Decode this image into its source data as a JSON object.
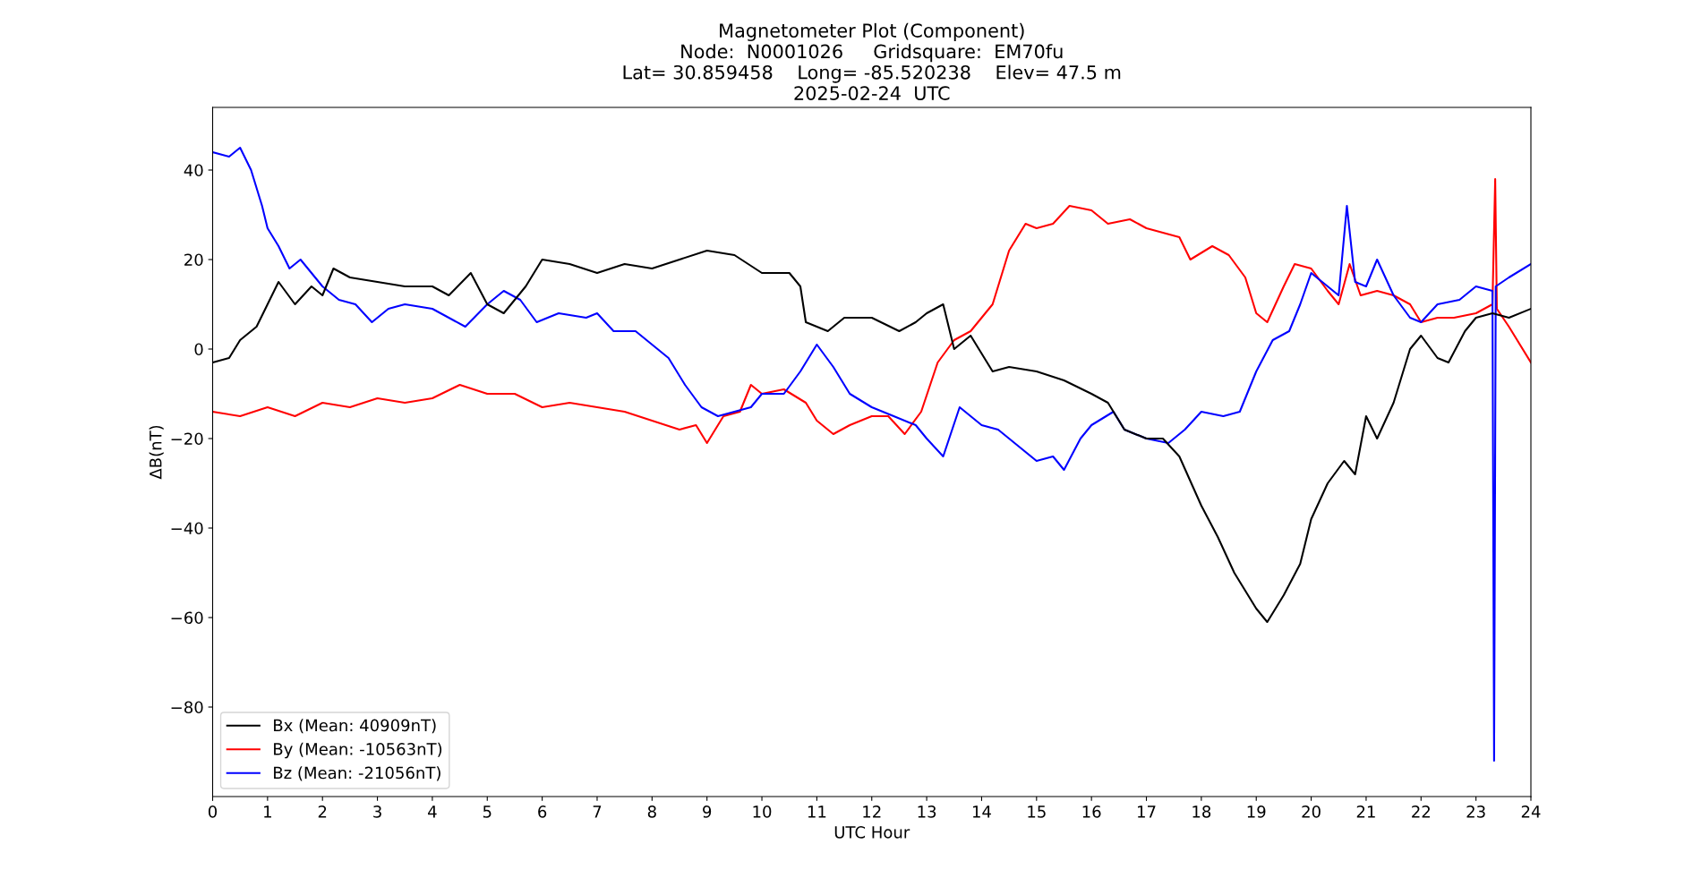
{
  "chart_data": {
    "type": "line",
    "title": "Magnetometer Plot (Component)\nNode:  N0001026     Gridsquare:  EM70fu\nLat= 30.859458    Long= -85.520238    Elev= 47.5 m\n2025-02-24  UTC",
    "xlabel": "UTC Hour",
    "ylabel": "ΔB(nT)",
    "xlim": [
      0,
      24
    ],
    "xticks": [
      0,
      1,
      2,
      3,
      4,
      5,
      6,
      7,
      8,
      9,
      10,
      11,
      12,
      13,
      14,
      15,
      16,
      17,
      18,
      19,
      20,
      21,
      22,
      23,
      24
    ],
    "ylim": [
      -100,
      54
    ],
    "yticks": [
      -80,
      -60,
      -40,
      -20,
      0,
      20,
      40
    ],
    "grid": false,
    "legend": "bottom left",
    "series": [
      {
        "name": "Bx (Mean: 40909nT)",
        "color": "#000000",
        "x": [
          0,
          0.3,
          0.5,
          0.8,
          1.0,
          1.2,
          1.5,
          1.8,
          2.0,
          2.2,
          2.5,
          3.0,
          3.5,
          4.0,
          4.3,
          4.7,
          5.0,
          5.3,
          5.7,
          6.0,
          6.5,
          7.0,
          7.5,
          8.0,
          8.5,
          9.0,
          9.5,
          10.0,
          10.5,
          10.7,
          10.8,
          11.2,
          11.5,
          12.0,
          12.5,
          12.8,
          13.0,
          13.3,
          13.5,
          13.8,
          14.2,
          14.5,
          15.0,
          15.5,
          16.0,
          16.3,
          16.6,
          17.0,
          17.3,
          17.6,
          18.0,
          18.3,
          18.6,
          19.0,
          19.2,
          19.5,
          19.8,
          20.0,
          20.3,
          20.6,
          20.8,
          21.0,
          21.2,
          21.5,
          21.8,
          22.0,
          22.3,
          22.5,
          22.8,
          23.0,
          23.3,
          23.6,
          24
        ],
        "values": [
          -3,
          -2,
          2,
          5,
          10,
          15,
          10,
          14,
          12,
          18,
          16,
          15,
          14,
          14,
          12,
          17,
          10,
          8,
          14,
          20,
          19,
          17,
          19,
          18,
          20,
          22,
          21,
          17,
          17,
          14,
          6,
          4,
          7,
          7,
          4,
          6,
          8,
          10,
          0,
          3,
          -5,
          -4,
          -5,
          -7,
          -10,
          -12,
          -18,
          -20,
          -20,
          -24,
          -35,
          -42,
          -50,
          -58,
          -61,
          -55,
          -48,
          -38,
          -30,
          -25,
          -28,
          -15,
          -20,
          -12,
          0,
          3,
          -2,
          -3,
          4,
          7,
          8,
          7,
          9
        ]
      },
      {
        "name": "By (Mean: -10563nT)",
        "color": "#ff0000",
        "x": [
          0,
          0.5,
          1.0,
          1.5,
          2.0,
          2.5,
          3.0,
          3.5,
          4.0,
          4.5,
          5.0,
          5.5,
          6.0,
          6.5,
          7.0,
          7.5,
          8.0,
          8.5,
          8.8,
          9.0,
          9.3,
          9.6,
          9.8,
          10.0,
          10.4,
          10.8,
          11.0,
          11.3,
          11.6,
          12.0,
          12.3,
          12.6,
          12.9,
          13.2,
          13.5,
          13.8,
          14.2,
          14.5,
          14.8,
          15.0,
          15.3,
          15.6,
          16.0,
          16.3,
          16.7,
          17.0,
          17.3,
          17.6,
          17.8,
          18.2,
          18.5,
          18.8,
          19.0,
          19.2,
          19.5,
          19.7,
          20.0,
          20.3,
          20.5,
          20.7,
          20.9,
          21.2,
          21.5,
          21.8,
          22.0,
          22.3,
          22.6,
          23.0,
          23.3,
          23.35,
          23.38,
          23.6,
          24
        ],
        "values": [
          -14,
          -15,
          -13,
          -15,
          -12,
          -13,
          -11,
          -12,
          -11,
          -8,
          -10,
          -10,
          -13,
          -12,
          -13,
          -14,
          -16,
          -18,
          -17,
          -21,
          -15,
          -14,
          -8,
          -10,
          -9,
          -12,
          -16,
          -19,
          -17,
          -15,
          -15,
          -19,
          -14,
          -3,
          2,
          4,
          10,
          22,
          28,
          27,
          28,
          32,
          31,
          28,
          29,
          27,
          26,
          25,
          20,
          23,
          21,
          16,
          8,
          6,
          14,
          19,
          18,
          13,
          10,
          19,
          12,
          13,
          12,
          10,
          6,
          7,
          7,
          8,
          10,
          38,
          9,
          5,
          -3
        ]
      },
      {
        "name": "Bz (Mean: -21056nT)",
        "color": "#0000ff",
        "x": [
          0,
          0.3,
          0.5,
          0.7,
          0.9,
          1.0,
          1.2,
          1.4,
          1.6,
          2.0,
          2.3,
          2.6,
          2.9,
          3.2,
          3.5,
          4.0,
          4.3,
          4.6,
          5.0,
          5.3,
          5.6,
          5.9,
          6.3,
          6.8,
          7.0,
          7.3,
          7.7,
          8.0,
          8.3,
          8.6,
          8.9,
          9.2,
          9.5,
          9.8,
          10.0,
          10.4,
          10.7,
          11.0,
          11.3,
          11.6,
          12.0,
          12.4,
          12.8,
          13.0,
          13.3,
          13.6,
          14.0,
          14.3,
          14.7,
          15.0,
          15.3,
          15.5,
          15.8,
          16.0,
          16.4,
          16.6,
          17.0,
          17.4,
          17.7,
          18.0,
          18.4,
          18.7,
          19.0,
          19.3,
          19.6,
          19.8,
          20.0,
          20.3,
          20.5,
          20.65,
          20.8,
          21.0,
          21.2,
          21.5,
          21.8,
          22.0,
          22.3,
          22.7,
          23.0,
          23.3,
          23.33,
          23.36,
          23.6,
          24
        ],
        "values": [
          44,
          43,
          45,
          40,
          32,
          27,
          23,
          18,
          20,
          14,
          11,
          10,
          6,
          9,
          10,
          9,
          7,
          5,
          10,
          13,
          11,
          6,
          8,
          7,
          8,
          4,
          4,
          1,
          -2,
          -8,
          -13,
          -15,
          -14,
          -13,
          -10,
          -10,
          -5,
          1,
          -4,
          -10,
          -13,
          -15,
          -17,
          -20,
          -24,
          -13,
          -17,
          -18,
          -22,
          -25,
          -24,
          -27,
          -20,
          -17,
          -14,
          -18,
          -20,
          -21,
          -18,
          -14,
          -15,
          -14,
          -5,
          2,
          4,
          10,
          17,
          14,
          12,
          32,
          15,
          14,
          20,
          12,
          7,
          6,
          10,
          11,
          14,
          13,
          -92,
          14,
          16,
          19
        ]
      }
    ]
  }
}
